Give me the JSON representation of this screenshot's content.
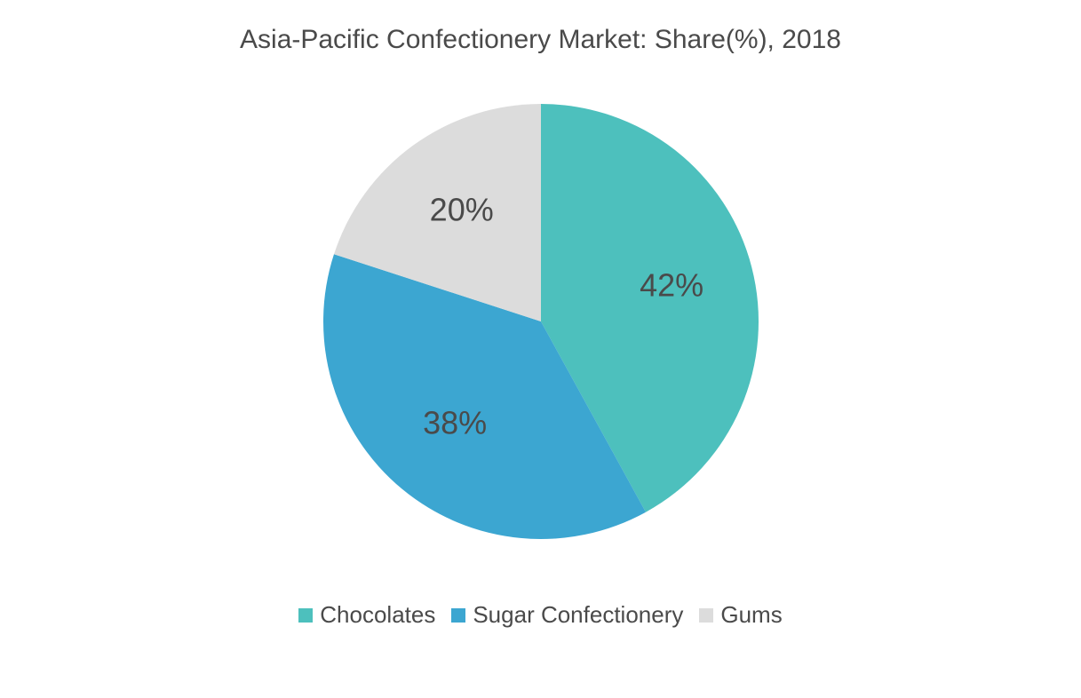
{
  "chart": {
    "type": "pie",
    "title": "Asia-Pacific Confectionery Market: Share(%), 2018",
    "title_fontsize": 30,
    "title_color": "#4a4a4a",
    "background_color": "#ffffff",
    "radius": 245,
    "start_angle_deg": -90,
    "slices": [
      {
        "name": "Chocolates",
        "value": 42,
        "label": "42%",
        "color": "#4dc0bd"
      },
      {
        "name": "Sugar Confectionery",
        "value": 38,
        "label": "38%",
        "color": "#3ca6d1"
      },
      {
        "name": "Gums",
        "value": 20,
        "label": "20%",
        "color": "#dcdcdc"
      }
    ],
    "label_fontsize": 36,
    "label_color": "#4a4a4a",
    "label_radius_factor": 0.62
  },
  "legend": {
    "fontsize": 26,
    "text_color": "#4a4a4a",
    "swatch_size": 16,
    "items": [
      {
        "label": "Chocolates",
        "color": "#4dc0bd"
      },
      {
        "label": "Sugar Confectionery",
        "color": "#3ca6d1"
      },
      {
        "label": "Gums",
        "color": "#dcdcdc"
      }
    ]
  }
}
